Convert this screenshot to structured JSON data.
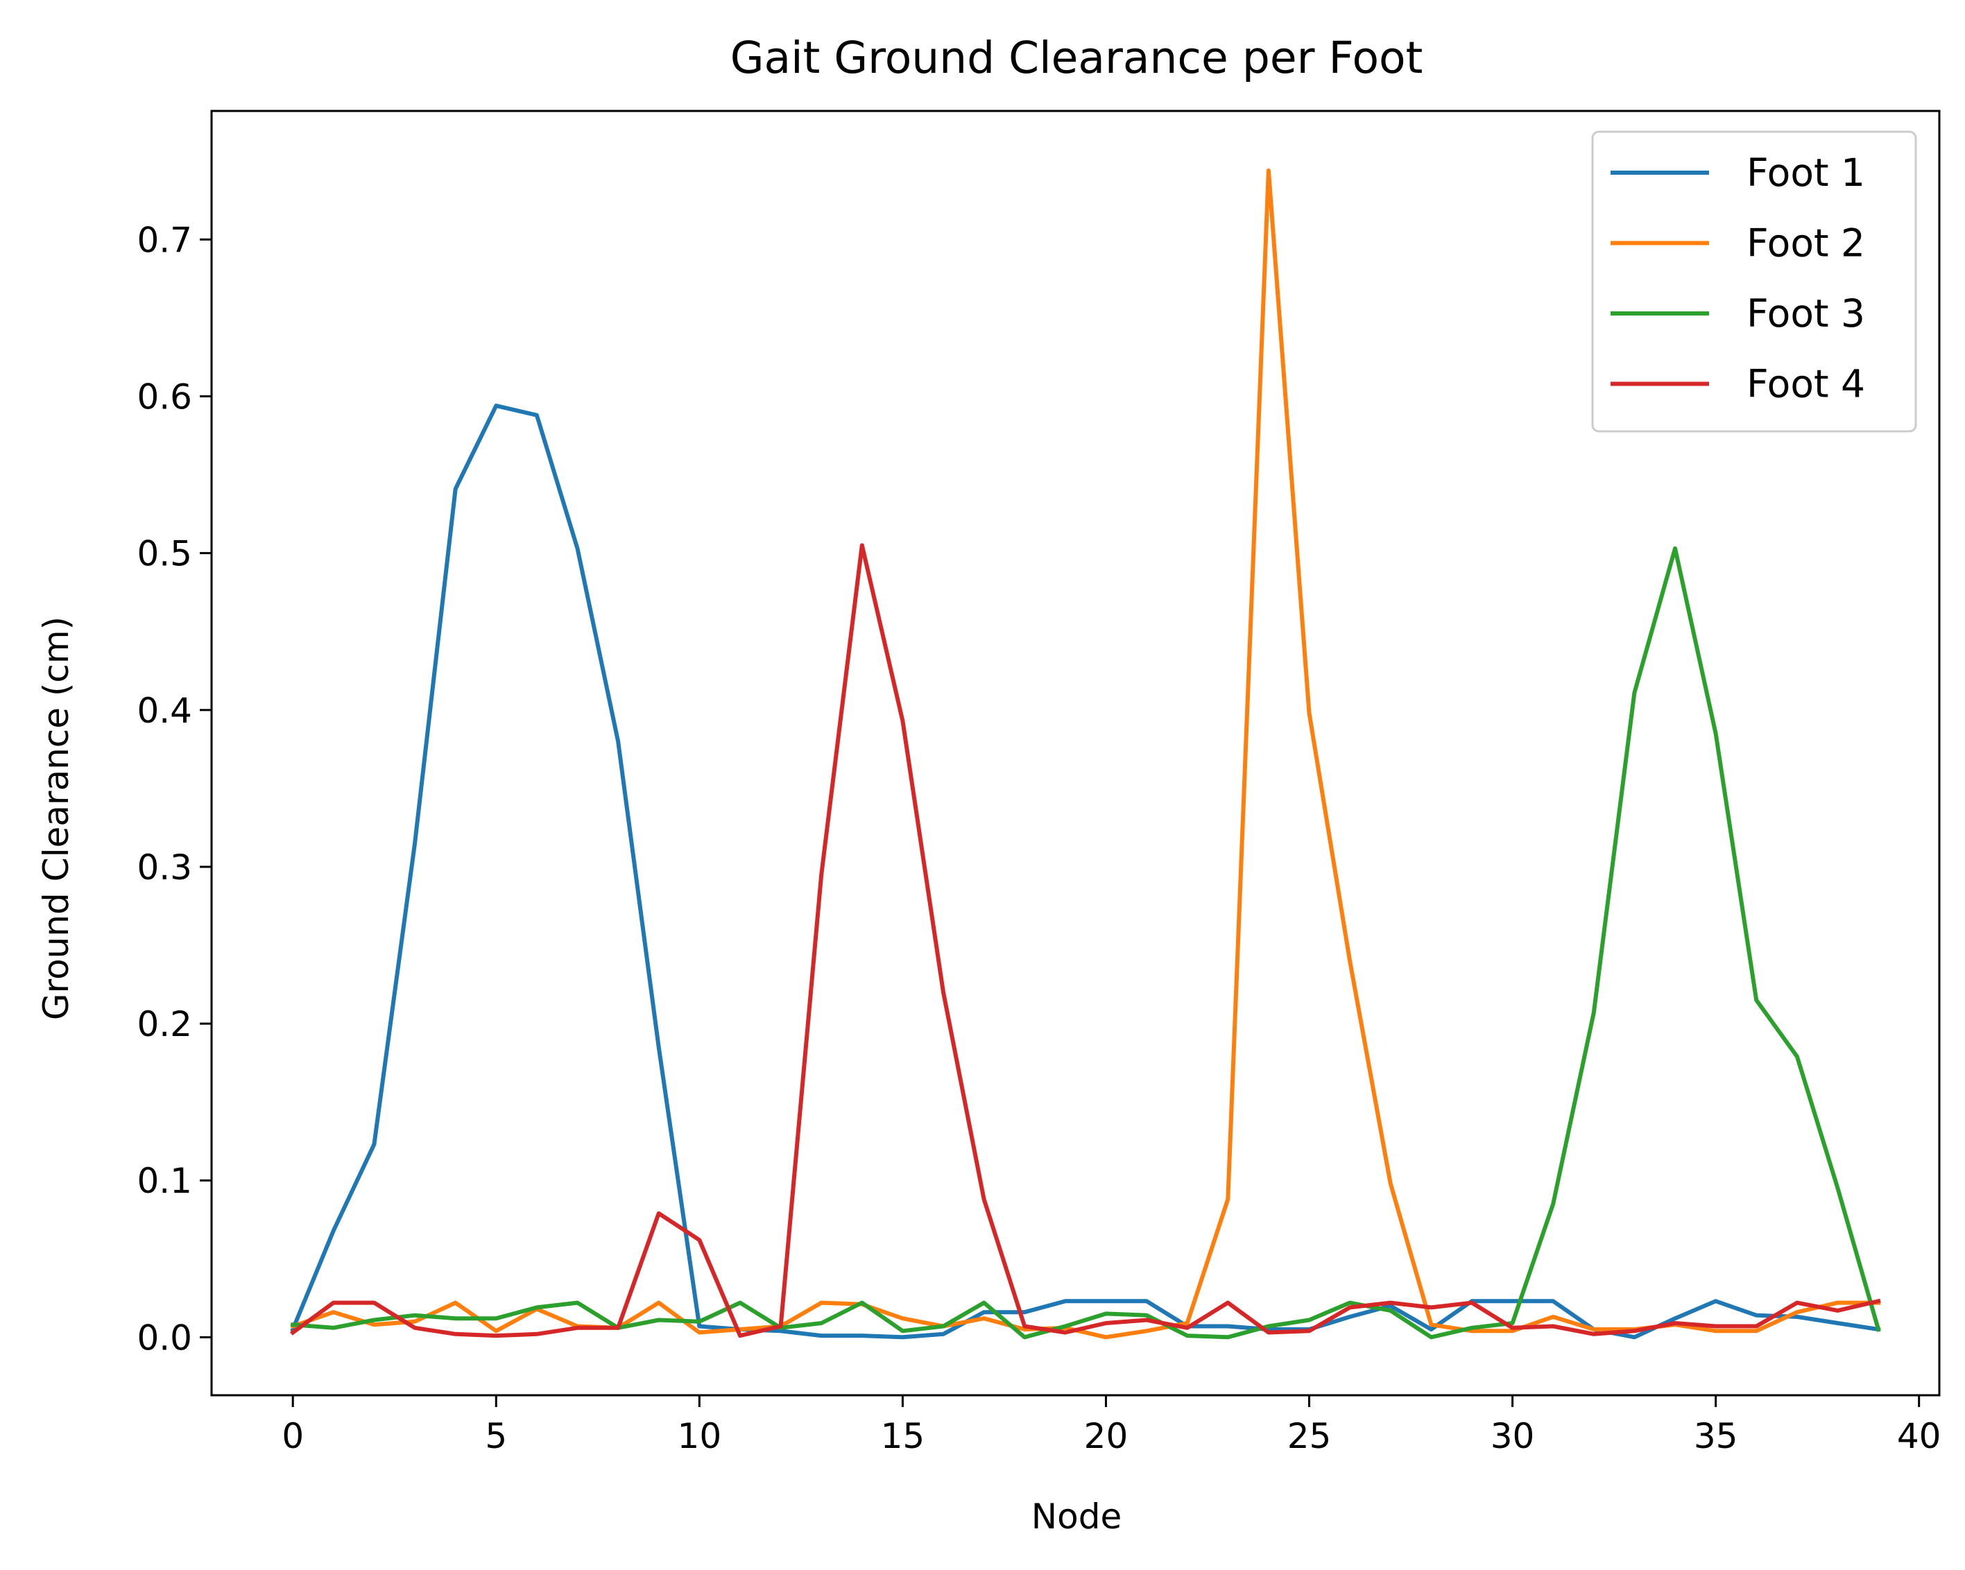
{
  "chart_data": {
    "type": "line",
    "title": "Gait Ground Clearance per Foot",
    "xlabel": "Node",
    "ylabel": "Ground Clearance (cm)",
    "xlim": [
      -2,
      40.5
    ],
    "ylim": [
      -0.037,
      0.782
    ],
    "xticks": [
      0,
      5,
      10,
      15,
      20,
      25,
      30,
      35,
      40
    ],
    "yticks": [
      0.0,
      0.1,
      0.2,
      0.3,
      0.4,
      0.5,
      0.6,
      0.7
    ],
    "grid": false,
    "legend_position": "top-right",
    "x": [
      0,
      1,
      2,
      3,
      4,
      5,
      6,
      7,
      8,
      9,
      10,
      11,
      12,
      13,
      14,
      15,
      16,
      17,
      18,
      19,
      20,
      21,
      22,
      23,
      24,
      25,
      26,
      27,
      28,
      29,
      30,
      31,
      32,
      33,
      34,
      35,
      36,
      37,
      38,
      39
    ],
    "series": [
      {
        "name": "Foot 1",
        "color": "#1f77b4",
        "values": [
          0.005,
          0.068,
          0.123,
          0.315,
          0.541,
          0.594,
          0.588,
          0.503,
          0.38,
          0.185,
          0.007,
          0.005,
          0.004,
          0.001,
          0.001,
          0.0,
          0.002,
          0.016,
          0.016,
          0.023,
          0.023,
          0.023,
          0.007,
          0.007,
          0.005,
          0.005,
          0.013,
          0.02,
          0.005,
          0.023,
          0.023,
          0.023,
          0.005,
          0.0,
          0.012,
          0.023,
          0.014,
          0.013,
          0.009,
          0.005
        ]
      },
      {
        "name": "Foot 2",
        "color": "#ff7f0e",
        "values": [
          0.007,
          0.016,
          0.008,
          0.01,
          0.022,
          0.004,
          0.018,
          0.007,
          0.006,
          0.022,
          0.003,
          0.005,
          0.007,
          0.022,
          0.021,
          0.012,
          0.007,
          0.012,
          0.005,
          0.006,
          0.0,
          0.004,
          0.009,
          0.088,
          0.744,
          0.398,
          0.24,
          0.098,
          0.008,
          0.004,
          0.004,
          0.013,
          0.005,
          0.005,
          0.008,
          0.004,
          0.004,
          0.016,
          0.022,
          0.022
        ]
      },
      {
        "name": "Foot 3",
        "color": "#2ca02c",
        "values": [
          0.008,
          0.006,
          0.011,
          0.014,
          0.012,
          0.012,
          0.019,
          0.022,
          0.006,
          0.011,
          0.01,
          0.022,
          0.006,
          0.009,
          0.022,
          0.004,
          0.007,
          0.022,
          0.0,
          0.007,
          0.015,
          0.014,
          0.001,
          0.0,
          0.007,
          0.011,
          0.022,
          0.017,
          0.0,
          0.006,
          0.009,
          0.085,
          0.207,
          0.411,
          0.503,
          0.385,
          0.215,
          0.179,
          0.095,
          0.005
        ]
      },
      {
        "name": "Foot 4",
        "color": "#d62728",
        "values": [
          0.003,
          0.022,
          0.022,
          0.006,
          0.002,
          0.001,
          0.002,
          0.006,
          0.006,
          0.079,
          0.062,
          0.001,
          0.007,
          0.295,
          0.505,
          0.393,
          0.22,
          0.088,
          0.007,
          0.003,
          0.009,
          0.011,
          0.006,
          0.022,
          0.003,
          0.004,
          0.019,
          0.022,
          0.019,
          0.022,
          0.006,
          0.007,
          0.002,
          0.004,
          0.009,
          0.007,
          0.007,
          0.022,
          0.017,
          0.023
        ]
      }
    ]
  }
}
